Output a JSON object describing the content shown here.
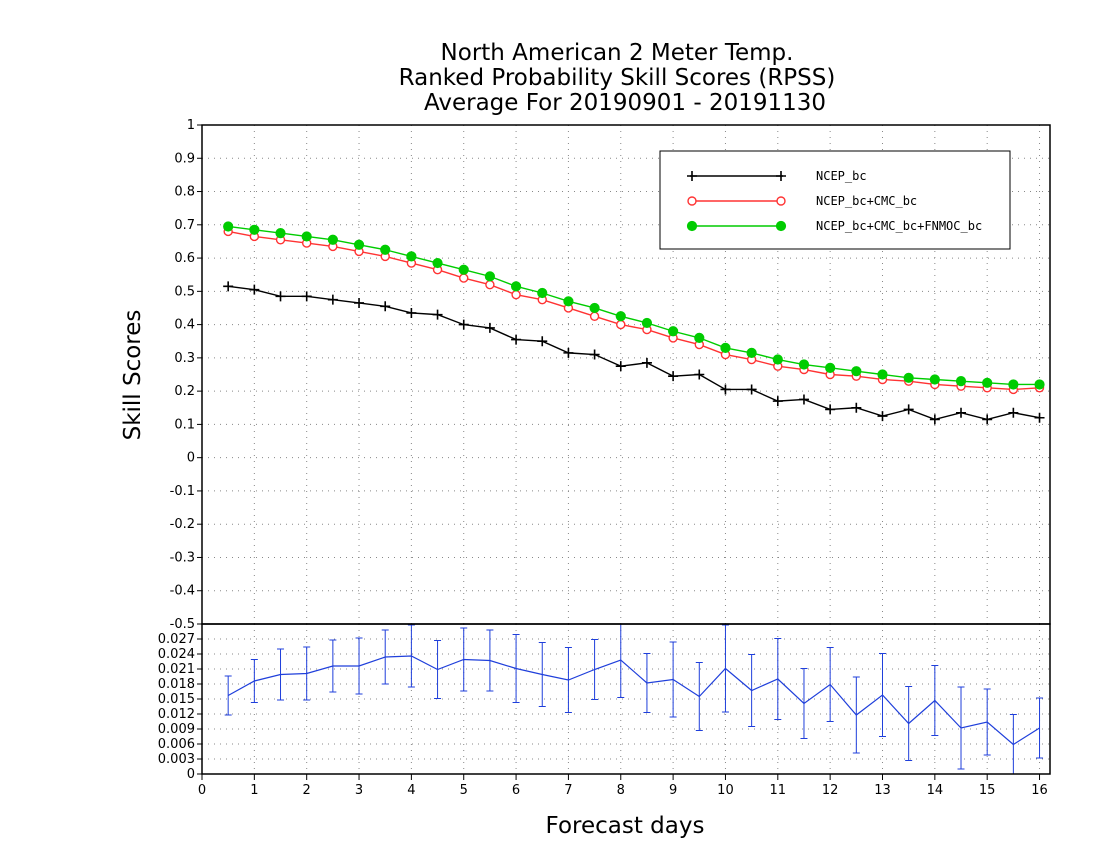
{
  "chart_data": [
    {
      "type": "line",
      "title": "North American 2 Meter Temp.",
      "subtitle": "Ranked Probability Skill Scores (RPSS)",
      "subtitle2": "Average For 20190901 - 20191130",
      "xlabel": "Forecast days",
      "ylabel": "Skill Scores",
      "xlim": [
        0,
        16.2
      ],
      "ylim": [
        -0.5,
        1
      ],
      "grid": true,
      "legend_position": "top-right",
      "xticks": [
        "0",
        "1",
        "2",
        "3",
        "4",
        "5",
        "6",
        "7",
        "8",
        "9",
        "10",
        "11",
        "12",
        "13",
        "14",
        "15",
        "16"
      ],
      "yticks": [
        "1",
        "0.9",
        "0.8",
        "0.7",
        "0.6",
        "0.5",
        "0.4",
        "0.3",
        "0.2",
        "0.1",
        "0",
        "-0.1",
        "-0.2",
        "-0.3",
        "-0.4",
        "-0.5"
      ],
      "x": [
        0.5,
        1,
        1.5,
        2,
        2.5,
        3,
        3.5,
        4,
        4.5,
        5,
        5.5,
        6,
        6.5,
        7,
        7.5,
        8,
        8.5,
        9,
        9.5,
        10,
        10.5,
        11,
        11.5,
        12,
        12.5,
        13,
        13.5,
        14,
        14.5,
        15,
        15.5,
        16
      ],
      "series": [
        {
          "name": "NCEP_bc",
          "color": "#000000",
          "marker": "plus",
          "values": [
            0.515,
            0.505,
            0.485,
            0.485,
            0.475,
            0.465,
            0.455,
            0.435,
            0.43,
            0.4,
            0.39,
            0.355,
            0.35,
            0.315,
            0.31,
            0.275,
            0.285,
            0.245,
            0.25,
            0.205,
            0.205,
            0.17,
            0.175,
            0.145,
            0.15,
            0.125,
            0.145,
            0.115,
            0.135,
            0.115,
            0.135,
            0.12
          ]
        },
        {
          "name": "NCEP_bc+CMC_bc",
          "color": "#ff3333",
          "marker": "open-circle",
          "values": [
            0.68,
            0.665,
            0.655,
            0.645,
            0.635,
            0.62,
            0.605,
            0.585,
            0.565,
            0.54,
            0.52,
            0.49,
            0.475,
            0.45,
            0.425,
            0.4,
            0.385,
            0.36,
            0.34,
            0.31,
            0.295,
            0.275,
            0.265,
            0.25,
            0.245,
            0.235,
            0.23,
            0.22,
            0.215,
            0.21,
            0.205,
            0.21
          ]
        },
        {
          "name": "NCEP_bc+CMC_bc+FNMOC_bc",
          "color": "#00cc00",
          "marker": "filled-circle",
          "values": [
            0.695,
            0.685,
            0.675,
            0.665,
            0.655,
            0.64,
            0.625,
            0.605,
            0.585,
            0.565,
            0.545,
            0.515,
            0.495,
            0.47,
            0.45,
            0.425,
            0.405,
            0.38,
            0.36,
            0.33,
            0.315,
            0.295,
            0.28,
            0.27,
            0.26,
            0.25,
            0.24,
            0.235,
            0.23,
            0.225,
            0.22,
            0.22
          ]
        }
      ]
    },
    {
      "type": "line",
      "xlim": [
        0,
        16.2
      ],
      "ylim": [
        0,
        0.03
      ],
      "grid": true,
      "yticks": [
        "0.027",
        "0.024",
        "0.021",
        "0.018",
        "0.015",
        "0.012",
        "0.009",
        "0.006",
        "0.003",
        "0"
      ],
      "x": [
        0.5,
        1,
        1.5,
        2,
        2.5,
        3,
        3.5,
        4,
        4.5,
        5,
        5.5,
        6,
        6.5,
        7,
        7.5,
        8,
        8.5,
        9,
        9.5,
        10,
        10.5,
        11,
        11.5,
        12,
        12.5,
        13,
        13.5,
        14,
        14.5,
        15,
        15.5,
        16
      ],
      "series": [
        {
          "color": "#1f3fdb",
          "marker": "error-bar",
          "values": [
            0.0157,
            0.0186,
            0.0199,
            0.0201,
            0.0216,
            0.0216,
            0.0234,
            0.0236,
            0.0209,
            0.0229,
            0.0227,
            0.0211,
            0.0199,
            0.0188,
            0.0209,
            0.0228,
            0.0182,
            0.0189,
            0.0155,
            0.0211,
            0.0167,
            0.019,
            0.0141,
            0.0179,
            0.0118,
            0.0158,
            0.0101,
            0.0147,
            0.0092,
            0.0104,
            0.0059,
            0.0092
          ],
          "error": [
            0.0039,
            0.0043,
            0.0051,
            0.0053,
            0.0052,
            0.0056,
            0.0054,
            0.0062,
            0.0058,
            0.0063,
            0.0061,
            0.0068,
            0.0064,
            0.0065,
            0.006,
            0.0075,
            0.0059,
            0.0075,
            0.0068,
            0.0087,
            0.0072,
            0.0081,
            0.007,
            0.0074,
            0.0076,
            0.0083,
            0.0074,
            0.007,
            0.0082,
            0.0066,
            0.006,
            0.006
          ]
        }
      ]
    }
  ]
}
